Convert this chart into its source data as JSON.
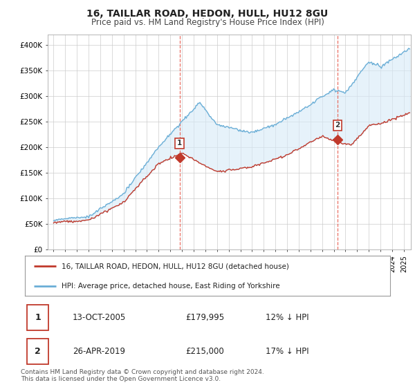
{
  "title": "16, TAILLAR ROAD, HEDON, HULL, HU12 8GU",
  "subtitle": "Price paid vs. HM Land Registry's House Price Index (HPI)",
  "ylabel_ticks": [
    "£0",
    "£50K",
    "£100K",
    "£150K",
    "£200K",
    "£250K",
    "£300K",
    "£350K",
    "£400K"
  ],
  "ytick_values": [
    0,
    50000,
    100000,
    150000,
    200000,
    250000,
    300000,
    350000,
    400000
  ],
  "ylim": [
    0,
    420000
  ],
  "sale1": {
    "date_num": 2005.79,
    "price": 179995,
    "label": "1"
  },
  "sale2": {
    "date_num": 2019.32,
    "price": 215000,
    "label": "2"
  },
  "line_color_red": "#c0392b",
  "line_color_blue": "#6aaed6",
  "fill_color_blue": "#d6eaf8",
  "vline_color": "#e74c3c",
  "background_color": "#ffffff",
  "grid_color": "#cccccc",
  "legend_label_red": "16, TAILLAR ROAD, HEDON, HULL, HU12 8GU (detached house)",
  "legend_label_blue": "HPI: Average price, detached house, East Riding of Yorkshire",
  "footnote": "Contains HM Land Registry data © Crown copyright and database right 2024.\nThis data is licensed under the Open Government Licence v3.0.",
  "table_rows": [
    {
      "num": "1",
      "date": "13-OCT-2005",
      "price": "£179,995",
      "pct": "12% ↓ HPI"
    },
    {
      "num": "2",
      "date": "26-APR-2019",
      "price": "£215,000",
      "pct": "17% ↓ HPI"
    }
  ]
}
